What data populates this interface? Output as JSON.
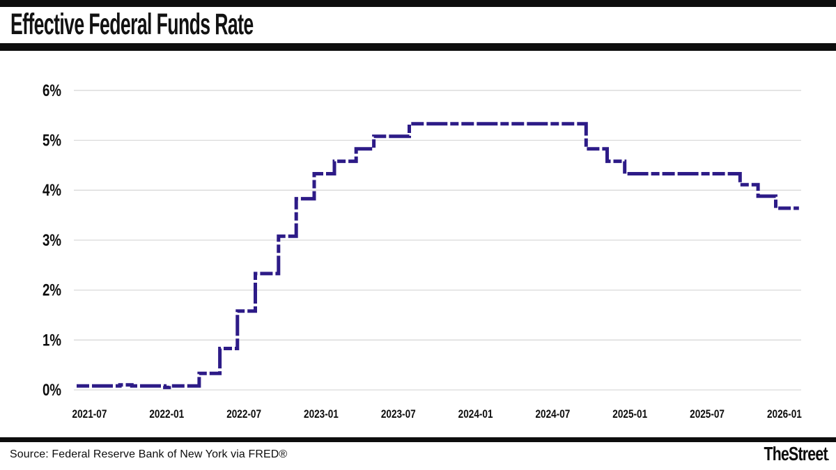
{
  "header": {
    "title": "Effective Federal Funds Rate"
  },
  "footer": {
    "source": "Source: Federal Reserve Bank of New York via FRED®",
    "brand": "TheStreet",
    "brand_dot": "."
  },
  "chart_data": {
    "type": "line",
    "subtype": "step",
    "title": "Effective Federal Funds Rate",
    "xlabel": "",
    "ylabel": "",
    "ylim": [
      0,
      6.2
    ],
    "grid": true,
    "legend": "none",
    "line_color": "#2d1b87",
    "grid_color": "#d9d9d9",
    "label_color": "#0d0d0d",
    "yticks": [
      {
        "value": 0,
        "label": "0%"
      },
      {
        "value": 1,
        "label": "1%"
      },
      {
        "value": 2,
        "label": "2%"
      },
      {
        "value": 3,
        "label": "3%"
      },
      {
        "value": 4,
        "label": "4%"
      },
      {
        "value": 5,
        "label": "5%"
      },
      {
        "value": 6,
        "label": "6%"
      }
    ],
    "xticks": [
      {
        "date": "2021-07-01",
        "label": "2021-07"
      },
      {
        "date": "2022-01-01",
        "label": "2022-01"
      },
      {
        "date": "2022-07-01",
        "label": "2022-07"
      },
      {
        "date": "2023-01-01",
        "label": "2023-01"
      },
      {
        "date": "2023-07-01",
        "label": "2023-07"
      },
      {
        "date": "2024-01-01",
        "label": "2024-01"
      },
      {
        "date": "2024-07-01",
        "label": "2024-07"
      },
      {
        "date": "2025-01-01",
        "label": "2025-01"
      },
      {
        "date": "2025-07-01",
        "label": "2025-07"
      },
      {
        "date": "2026-01-01",
        "label": "2026-01"
      }
    ],
    "x_domain": [
      "2021-06-01",
      "2026-02-07"
    ],
    "series": [
      {
        "name": "Effective Federal Funds Rate (%)",
        "points": [
          [
            "2021-06-01",
            0.08
          ],
          [
            "2021-09-12",
            0.1
          ],
          [
            "2021-10-10",
            0.08
          ],
          [
            "2021-12-27",
            0.05
          ],
          [
            "2022-01-07",
            0.08
          ],
          [
            "2022-03-17",
            0.33
          ],
          [
            "2022-05-05",
            0.83
          ],
          [
            "2022-06-16",
            1.58
          ],
          [
            "2022-07-28",
            2.33
          ],
          [
            "2022-09-22",
            3.08
          ],
          [
            "2022-11-03",
            3.83
          ],
          [
            "2022-12-15",
            4.33
          ],
          [
            "2023-02-02",
            4.58
          ],
          [
            "2023-03-23",
            4.83
          ],
          [
            "2023-05-04",
            5.08
          ],
          [
            "2023-07-27",
            5.33
          ],
          [
            "2024-09-19",
            4.83
          ],
          [
            "2024-11-08",
            4.58
          ],
          [
            "2024-12-19",
            4.33
          ],
          [
            "2025-09-18",
            4.11
          ],
          [
            "2025-10-30",
            3.88
          ],
          [
            "2025-12-11",
            3.64
          ],
          [
            "2026-02-05",
            3.64
          ]
        ]
      }
    ]
  }
}
